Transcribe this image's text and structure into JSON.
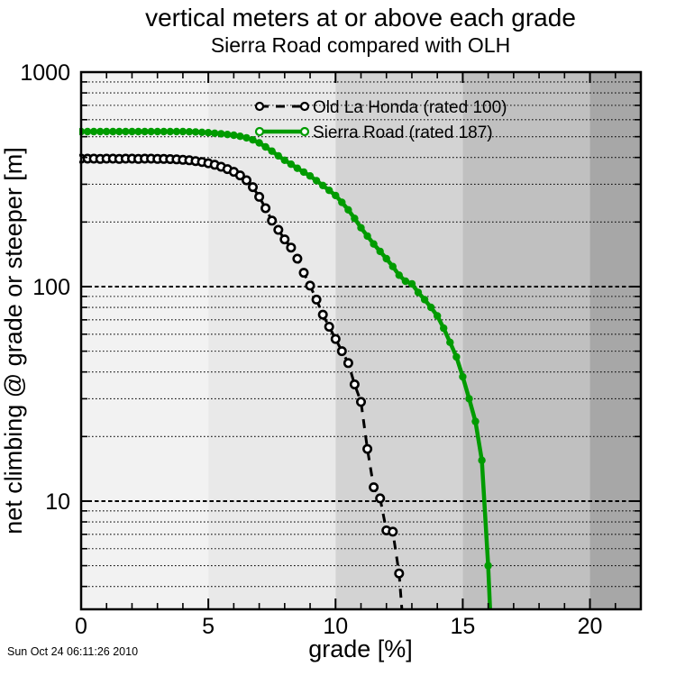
{
  "title": "vertical meters at or above each grade",
  "subtitle": "Sierra Road compared with OLH",
  "timestamp": "Sun Oct 24 06:11:26 2010",
  "chart_data": {
    "type": "line",
    "title": "vertical meters at or above each grade",
    "subtitle": "Sierra Road compared with OLH",
    "xlabel": "grade [%]",
    "ylabel": "net climbing @ grade or steeper [m]",
    "x_range": [
      0,
      22
    ],
    "y_scale": "log",
    "y_range": [
      3.13,
      1000
    ],
    "grid": "horizontal-dotted",
    "legend_position": "inside-top-center",
    "x_major_ticks": [
      0,
      5,
      10,
      15,
      20
    ],
    "x_minor_ticks": [
      1,
      2,
      3,
      4,
      6,
      7,
      8,
      9,
      11,
      12,
      13,
      14,
      16,
      17,
      18,
      19,
      21,
      22
    ],
    "y_major_ticks": [
      1000,
      100,
      10
    ],
    "y_major_gridlines": [
      100,
      10
    ],
    "y_minor_gridlines": [
      900,
      800,
      700,
      600,
      500,
      400,
      300,
      200,
      90,
      80,
      70,
      60,
      50,
      40,
      30,
      20,
      9,
      8,
      7,
      6,
      5,
      4
    ],
    "background_bands": [
      {
        "from": 0,
        "to": 5,
        "color": "#f2f2f2"
      },
      {
        "from": 5,
        "to": 10,
        "color": "#e9e9e9"
      },
      {
        "from": 10,
        "to": 15,
        "color": "#d3d3d3"
      },
      {
        "from": 15,
        "to": 20,
        "color": "#c0c0c0"
      },
      {
        "from": 20,
        "to": 22,
        "color": "#a7a7a7"
      }
    ],
    "series": [
      {
        "name": "Old La Honda (rated 100)",
        "color": "#000000",
        "line_style": "dashed",
        "marker": "open-circle",
        "points": [
          [
            0,
            395
          ],
          [
            0.25,
            395
          ],
          [
            0.5,
            395
          ],
          [
            0.75,
            394
          ],
          [
            1,
            395
          ],
          [
            1.25,
            395
          ],
          [
            1.5,
            394
          ],
          [
            1.75,
            395
          ],
          [
            2,
            395
          ],
          [
            2.25,
            394
          ],
          [
            2.5,
            395
          ],
          [
            2.75,
            395
          ],
          [
            3,
            394
          ],
          [
            3.25,
            394
          ],
          [
            3.5,
            393
          ],
          [
            3.75,
            392
          ],
          [
            4,
            390
          ],
          [
            4.25,
            388
          ],
          [
            4.5,
            385
          ],
          [
            4.75,
            381
          ],
          [
            5,
            376
          ],
          [
            5.25,
            370
          ],
          [
            5.5,
            362
          ],
          [
            5.75,
            353
          ],
          [
            6,
            343
          ],
          [
            6.25,
            330
          ],
          [
            6.5,
            313
          ],
          [
            6.75,
            291
          ],
          [
            7,
            262
          ],
          [
            7.25,
            232
          ],
          [
            7.5,
            203
          ],
          [
            7.75,
            184
          ],
          [
            8,
            166
          ],
          [
            8.25,
            152
          ],
          [
            8.5,
            135
          ],
          [
            8.75,
            116
          ],
          [
            9,
            101
          ],
          [
            9.25,
            87
          ],
          [
            9.5,
            74
          ],
          [
            9.75,
            65
          ],
          [
            10,
            57
          ],
          [
            10.25,
            50
          ],
          [
            10.5,
            44
          ],
          [
            10.75,
            35
          ],
          [
            11,
            29
          ],
          [
            11.25,
            17.5
          ],
          [
            11.5,
            11.6
          ],
          [
            11.75,
            10.3
          ],
          [
            12,
            7.3
          ],
          [
            12.25,
            7.2
          ],
          [
            12.5,
            4.6
          ],
          [
            12.62,
            3.0
          ]
        ]
      },
      {
        "name": "Sierra Road (rated 187)",
        "color": "#009b00",
        "line_style": "solid",
        "marker": "filled-circle",
        "points": [
          [
            0,
            528
          ],
          [
            0.25,
            528
          ],
          [
            0.5,
            528
          ],
          [
            0.75,
            528
          ],
          [
            1,
            528
          ],
          [
            1.25,
            528
          ],
          [
            1.5,
            528
          ],
          [
            1.75,
            528
          ],
          [
            2,
            528
          ],
          [
            2.25,
            528
          ],
          [
            2.5,
            528
          ],
          [
            2.75,
            528
          ],
          [
            3,
            528
          ],
          [
            3.25,
            528
          ],
          [
            3.5,
            528
          ],
          [
            3.75,
            528
          ],
          [
            4,
            528
          ],
          [
            4.25,
            527
          ],
          [
            4.5,
            526
          ],
          [
            4.75,
            524
          ],
          [
            5,
            522
          ],
          [
            5.25,
            519
          ],
          [
            5.5,
            516
          ],
          [
            5.75,
            512
          ],
          [
            6,
            508
          ],
          [
            6.25,
            502
          ],
          [
            6.5,
            494
          ],
          [
            6.75,
            483
          ],
          [
            7,
            468
          ],
          [
            7.25,
            448
          ],
          [
            7.5,
            428
          ],
          [
            7.75,
            407
          ],
          [
            8,
            388
          ],
          [
            8.25,
            372
          ],
          [
            8.5,
            356
          ],
          [
            8.75,
            342
          ],
          [
            9,
            328
          ],
          [
            9.25,
            312
          ],
          [
            9.5,
            296
          ],
          [
            9.75,
            281
          ],
          [
            10,
            266
          ],
          [
            10.25,
            247
          ],
          [
            10.5,
            228
          ],
          [
            10.75,
            208
          ],
          [
            11,
            188
          ],
          [
            11.25,
            172
          ],
          [
            11.5,
            158
          ],
          [
            11.75,
            146
          ],
          [
            12,
            135
          ],
          [
            12.25,
            124
          ],
          [
            12.5,
            113
          ],
          [
            12.75,
            106
          ],
          [
            13,
            103
          ],
          [
            13.25,
            94
          ],
          [
            13.5,
            87
          ],
          [
            13.75,
            80
          ],
          [
            14,
            73
          ],
          [
            14.25,
            64
          ],
          [
            14.5,
            55
          ],
          [
            14.75,
            47
          ],
          [
            15,
            38
          ],
          [
            15.25,
            30
          ],
          [
            15.5,
            23.5
          ],
          [
            15.75,
            15.5
          ],
          [
            16,
            5.0
          ],
          [
            16.08,
            3.0
          ]
        ]
      }
    ]
  }
}
